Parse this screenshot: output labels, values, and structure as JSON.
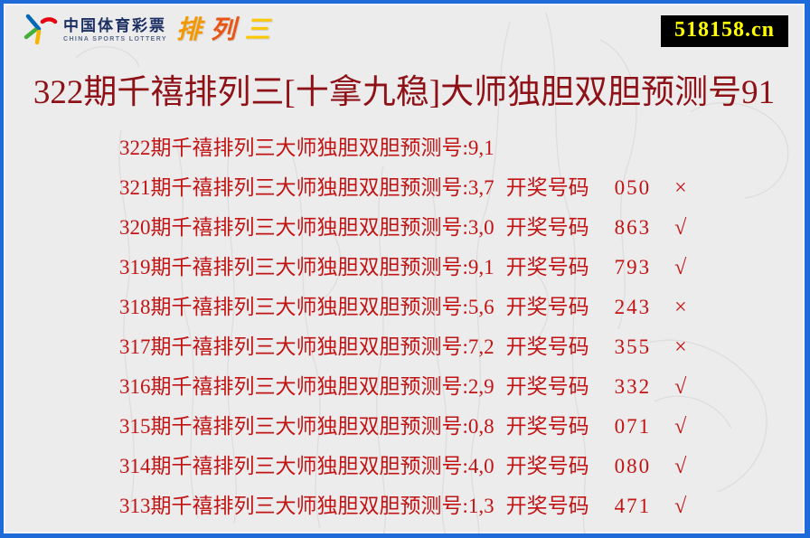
{
  "header": {
    "logo": {
      "cn_name": "中国体育彩票",
      "en_name": "CHINA SPORTS LOTTERY",
      "product": "排列三",
      "product_chars": [
        "排",
        "列",
        "三"
      ]
    },
    "site_badge": "518158.cn"
  },
  "title": "322期千禧排列三[十拿九稳]大师独胆双胆预测号91",
  "rows": [
    {
      "prediction": "322期千禧排列三大师独胆双胆预测号:9,1",
      "draw_label": "",
      "draw_number": "",
      "mark": ""
    },
    {
      "prediction": "321期千禧排列三大师独胆双胆预测号:3,7",
      "draw_label": "开奖号码",
      "draw_number": "050",
      "mark": "×"
    },
    {
      "prediction": "320期千禧排列三大师独胆双胆预测号:3,0",
      "draw_label": "开奖号码",
      "draw_number": "863",
      "mark": "√"
    },
    {
      "prediction": "319期千禧排列三大师独胆双胆预测号:9,1",
      "draw_label": "开奖号码",
      "draw_number": "793",
      "mark": "√"
    },
    {
      "prediction": "318期千禧排列三大师独胆双胆预测号:5,6",
      "draw_label": "开奖号码",
      "draw_number": "243",
      "mark": "×"
    },
    {
      "prediction": "317期千禧排列三大师独胆双胆预测号:7,2",
      "draw_label": "开奖号码",
      "draw_number": "355",
      "mark": "×"
    },
    {
      "prediction": "316期千禧排列三大师独胆双胆预测号:2,9",
      "draw_label": "开奖号码",
      "draw_number": "332",
      "mark": "√"
    },
    {
      "prediction": "315期千禧排列三大师独胆双胆预测号:0,8",
      "draw_label": "开奖号码",
      "draw_number": "071",
      "mark": "√"
    },
    {
      "prediction": "314期千禧排列三大师独胆双胆预测号:4,0",
      "draw_label": "开奖号码",
      "draw_number": "080",
      "mark": "√"
    },
    {
      "prediction": "313期千禧排列三大师独胆双胆预测号:1,3",
      "draw_label": "开奖号码",
      "draw_number": "471",
      "mark": "√"
    }
  ],
  "colors": {
    "border_blue": "#1e6ad9",
    "page_bg": "#ececec",
    "title_red": "#8e1117",
    "row_red": "#c21414",
    "badge_bg": "#000000",
    "badge_text": "#ffff00",
    "logo_navy": "#1c2f63",
    "product_char_colors": [
      "#f39800",
      "#ea5514",
      "#fcc800"
    ]
  }
}
